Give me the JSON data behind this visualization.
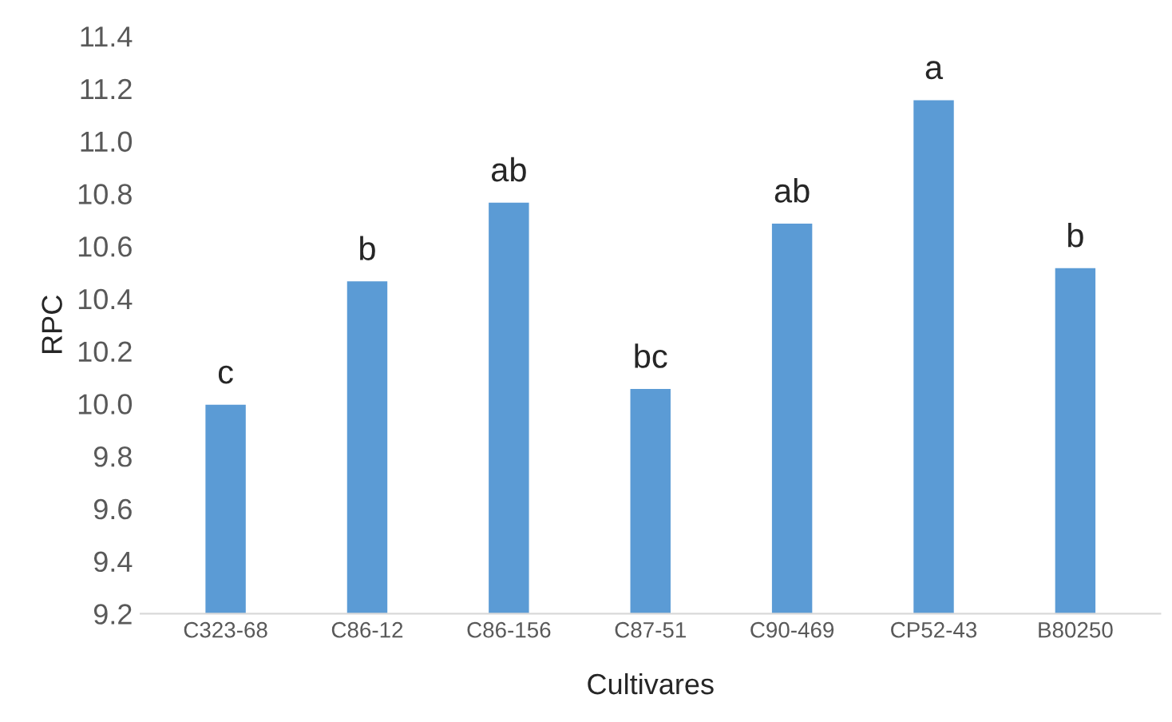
{
  "chart_data": {
    "type": "bar",
    "xlabel": "Cultivares",
    "ylabel": "RPC",
    "categories": [
      "C323-68",
      "C86-12",
      "C86-156",
      "C87-51",
      "C90-469",
      "CP52-43",
      "B80250"
    ],
    "series": [
      {
        "color": "#5b9bd5",
        "values": [
          10.0,
          10.47,
          10.77,
          10.06,
          10.69,
          11.16,
          10.52
        ]
      }
    ],
    "ylim": [
      9.2,
      11.4
    ],
    "yticks": [
      {
        "value": 9.2,
        "label": "9.2"
      },
      {
        "value": 9.4,
        "label": "9.4"
      },
      {
        "value": 9.6,
        "label": "9.6"
      },
      {
        "value": 9.8,
        "label": "9.8"
      },
      {
        "value": 10.0,
        "label": "10.0"
      },
      {
        "value": 10.2,
        "label": "10.2"
      },
      {
        "value": 10.4,
        "label": "10.4"
      },
      {
        "value": 10.6,
        "label": "10.6"
      },
      {
        "value": 10.8,
        "label": "10.8"
      },
      {
        "value": 11.0,
        "label": "11.0"
      },
      {
        "value": 11.2,
        "label": "11.2"
      },
      {
        "value": 11.4,
        "label": "11.4"
      }
    ],
    "grid": false,
    "annotations": [
      {
        "text": "c",
        "x": "C323-68",
        "y": 10.0
      },
      {
        "text": "b",
        "x": "C86-12",
        "y": 10.47
      },
      {
        "text": "ab",
        "x": "C86-156",
        "y": 10.77
      },
      {
        "text": "bc",
        "x": "C87-51",
        "y": 10.06
      },
      {
        "text": "ab",
        "x": "C90-469",
        "y": 10.69
      },
      {
        "text": "a",
        "x": "CP52-43",
        "y": 11.16
      },
      {
        "text": "b",
        "x": "B80250",
        "y": 10.52
      }
    ]
  }
}
